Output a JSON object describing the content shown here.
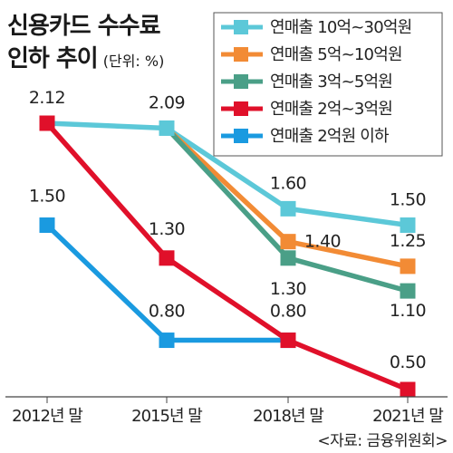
{
  "header": {
    "title_line1": "신용카드 수수료",
    "title_line2": "인하 추이",
    "unit": "(단위: %)"
  },
  "source": "<자료: 금융위원회>",
  "chart_data": {
    "type": "line",
    "title": "신용카드 수수료 인하 추이",
    "unit": "(단위: %)",
    "categories": [
      "2012년 말",
      "2015년 말",
      "2018년 말",
      "2021년 말"
    ],
    "ylim": [
      0.2,
      2.3
    ],
    "grid": false,
    "legend_position": "top-right",
    "series": [
      {
        "name": "연매출 10억~30억원",
        "color": "#5cc8d8",
        "values": [
          2.12,
          2.09,
          1.6,
          1.5
        ],
        "labels": [
          "2.12",
          "2.09",
          "1.60",
          "1.50"
        ]
      },
      {
        "name": "연매출 5억~10억원",
        "color": "#f28b35",
        "values": [
          null,
          null,
          1.4,
          1.25
        ],
        "labels": [
          "",
          "",
          "1.40",
          "1.25"
        ]
      },
      {
        "name": "연매출 3억~5억원",
        "color": "#4a9f87",
        "values": [
          null,
          null,
          1.3,
          1.1
        ],
        "labels": [
          "",
          "",
          "1.30",
          "1.10"
        ]
      },
      {
        "name": "연매출 2억~3억원",
        "color": "#e0102a",
        "values": [
          2.12,
          1.3,
          0.8,
          0.5
        ],
        "labels": [
          "",
          "1.30",
          "0.80",
          "0.50"
        ]
      },
      {
        "name": "연매출 2억원 이하",
        "color": "#1a9ae0",
        "values": [
          1.5,
          0.8,
          0.8,
          null
        ],
        "labels": [
          "1.50",
          "0.80",
          "",
          ""
        ]
      }
    ]
  }
}
